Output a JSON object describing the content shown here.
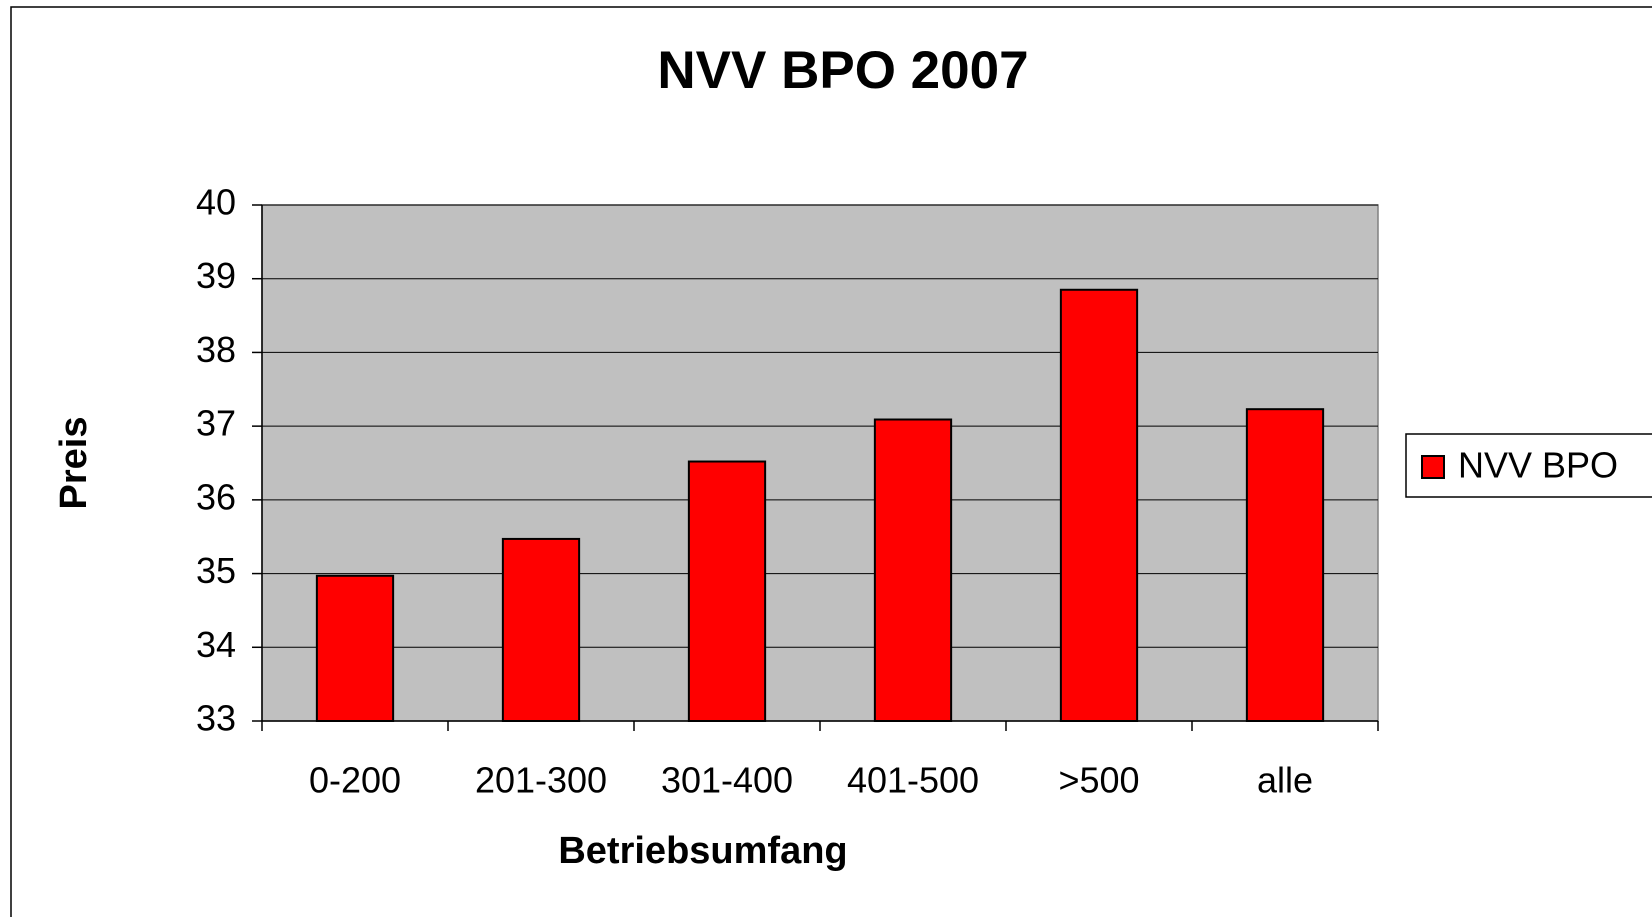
{
  "chart_data": {
    "type": "bar",
    "title": "NVV BPO 2007",
    "x_label": "Betriebsumfang",
    "y_label": "Preis",
    "categories": [
      "0-200",
      "201-300",
      "301-400",
      "401-500",
      ">500",
      "alle"
    ],
    "series": [
      {
        "name": "NVV BPO",
        "color": "#ff0000",
        "values": [
          34.97,
          35.47,
          36.52,
          37.09,
          38.85,
          37.23
        ]
      }
    ],
    "ylim": [
      33,
      40
    ],
    "yticks": [
      33,
      34,
      35,
      36,
      37,
      38,
      39,
      40
    ],
    "grid": true,
    "legend": "right"
  }
}
